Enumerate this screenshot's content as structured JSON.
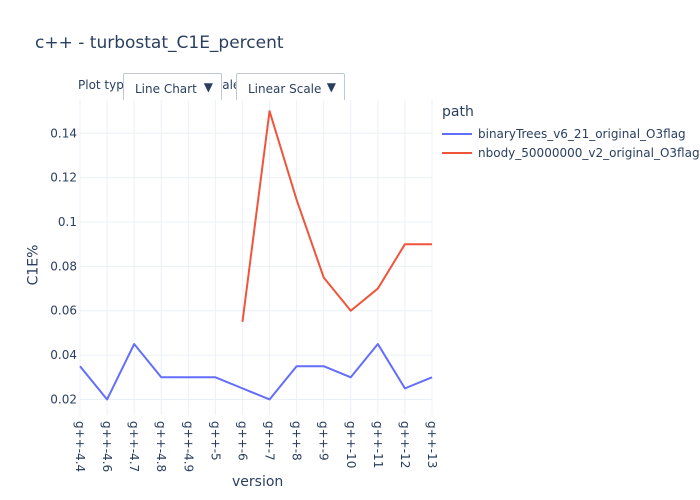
{
  "controls": {
    "plot_type_label": "Plot type:",
    "plot_type_value": "Line Chart",
    "scale_label": "Scale:",
    "scale_value": "Linear Scale",
    "arrow_glyph": "▼"
  },
  "legend": {
    "title": "path"
  },
  "chart_data": {
    "type": "line",
    "title": "c++ - turbostat_C1E_percent",
    "xlabel": "version",
    "ylabel": "C1E%",
    "categories": [
      "g++-4.4",
      "g++-4.6",
      "g++-4.7",
      "g++-4.8",
      "g++-4.9",
      "g++-5",
      "g++-6",
      "g++-7",
      "g++-8",
      "g++-9",
      "g++-10",
      "g++-11",
      "g++-12",
      "g++-13"
    ],
    "ylim": [
      0.013,
      0.155
    ],
    "yticks": [
      0.02,
      0.04,
      0.06,
      0.08,
      0.1,
      0.12,
      0.14
    ],
    "ytick_labels": [
      "0.02",
      "0.04",
      "0.06",
      "0.08",
      "0.1",
      "0.12",
      "0.14"
    ],
    "grid": true,
    "legend_position": "right",
    "series": [
      {
        "name": "binaryTrees_v6_21_original_O3flag",
        "color": "#636efa",
        "values": [
          0.035,
          0.02,
          0.045,
          0.03,
          0.03,
          0.03,
          0.025,
          0.02,
          0.035,
          0.035,
          0.03,
          0.045,
          0.025,
          0.03
        ]
      },
      {
        "name": "nbody_50000000_v2_original_O3flag",
        "color": "#ef553b",
        "values": [
          null,
          null,
          null,
          null,
          null,
          null,
          0.055,
          0.15,
          0.11,
          0.075,
          0.06,
          0.07,
          0.09,
          0.09
        ]
      }
    ]
  }
}
